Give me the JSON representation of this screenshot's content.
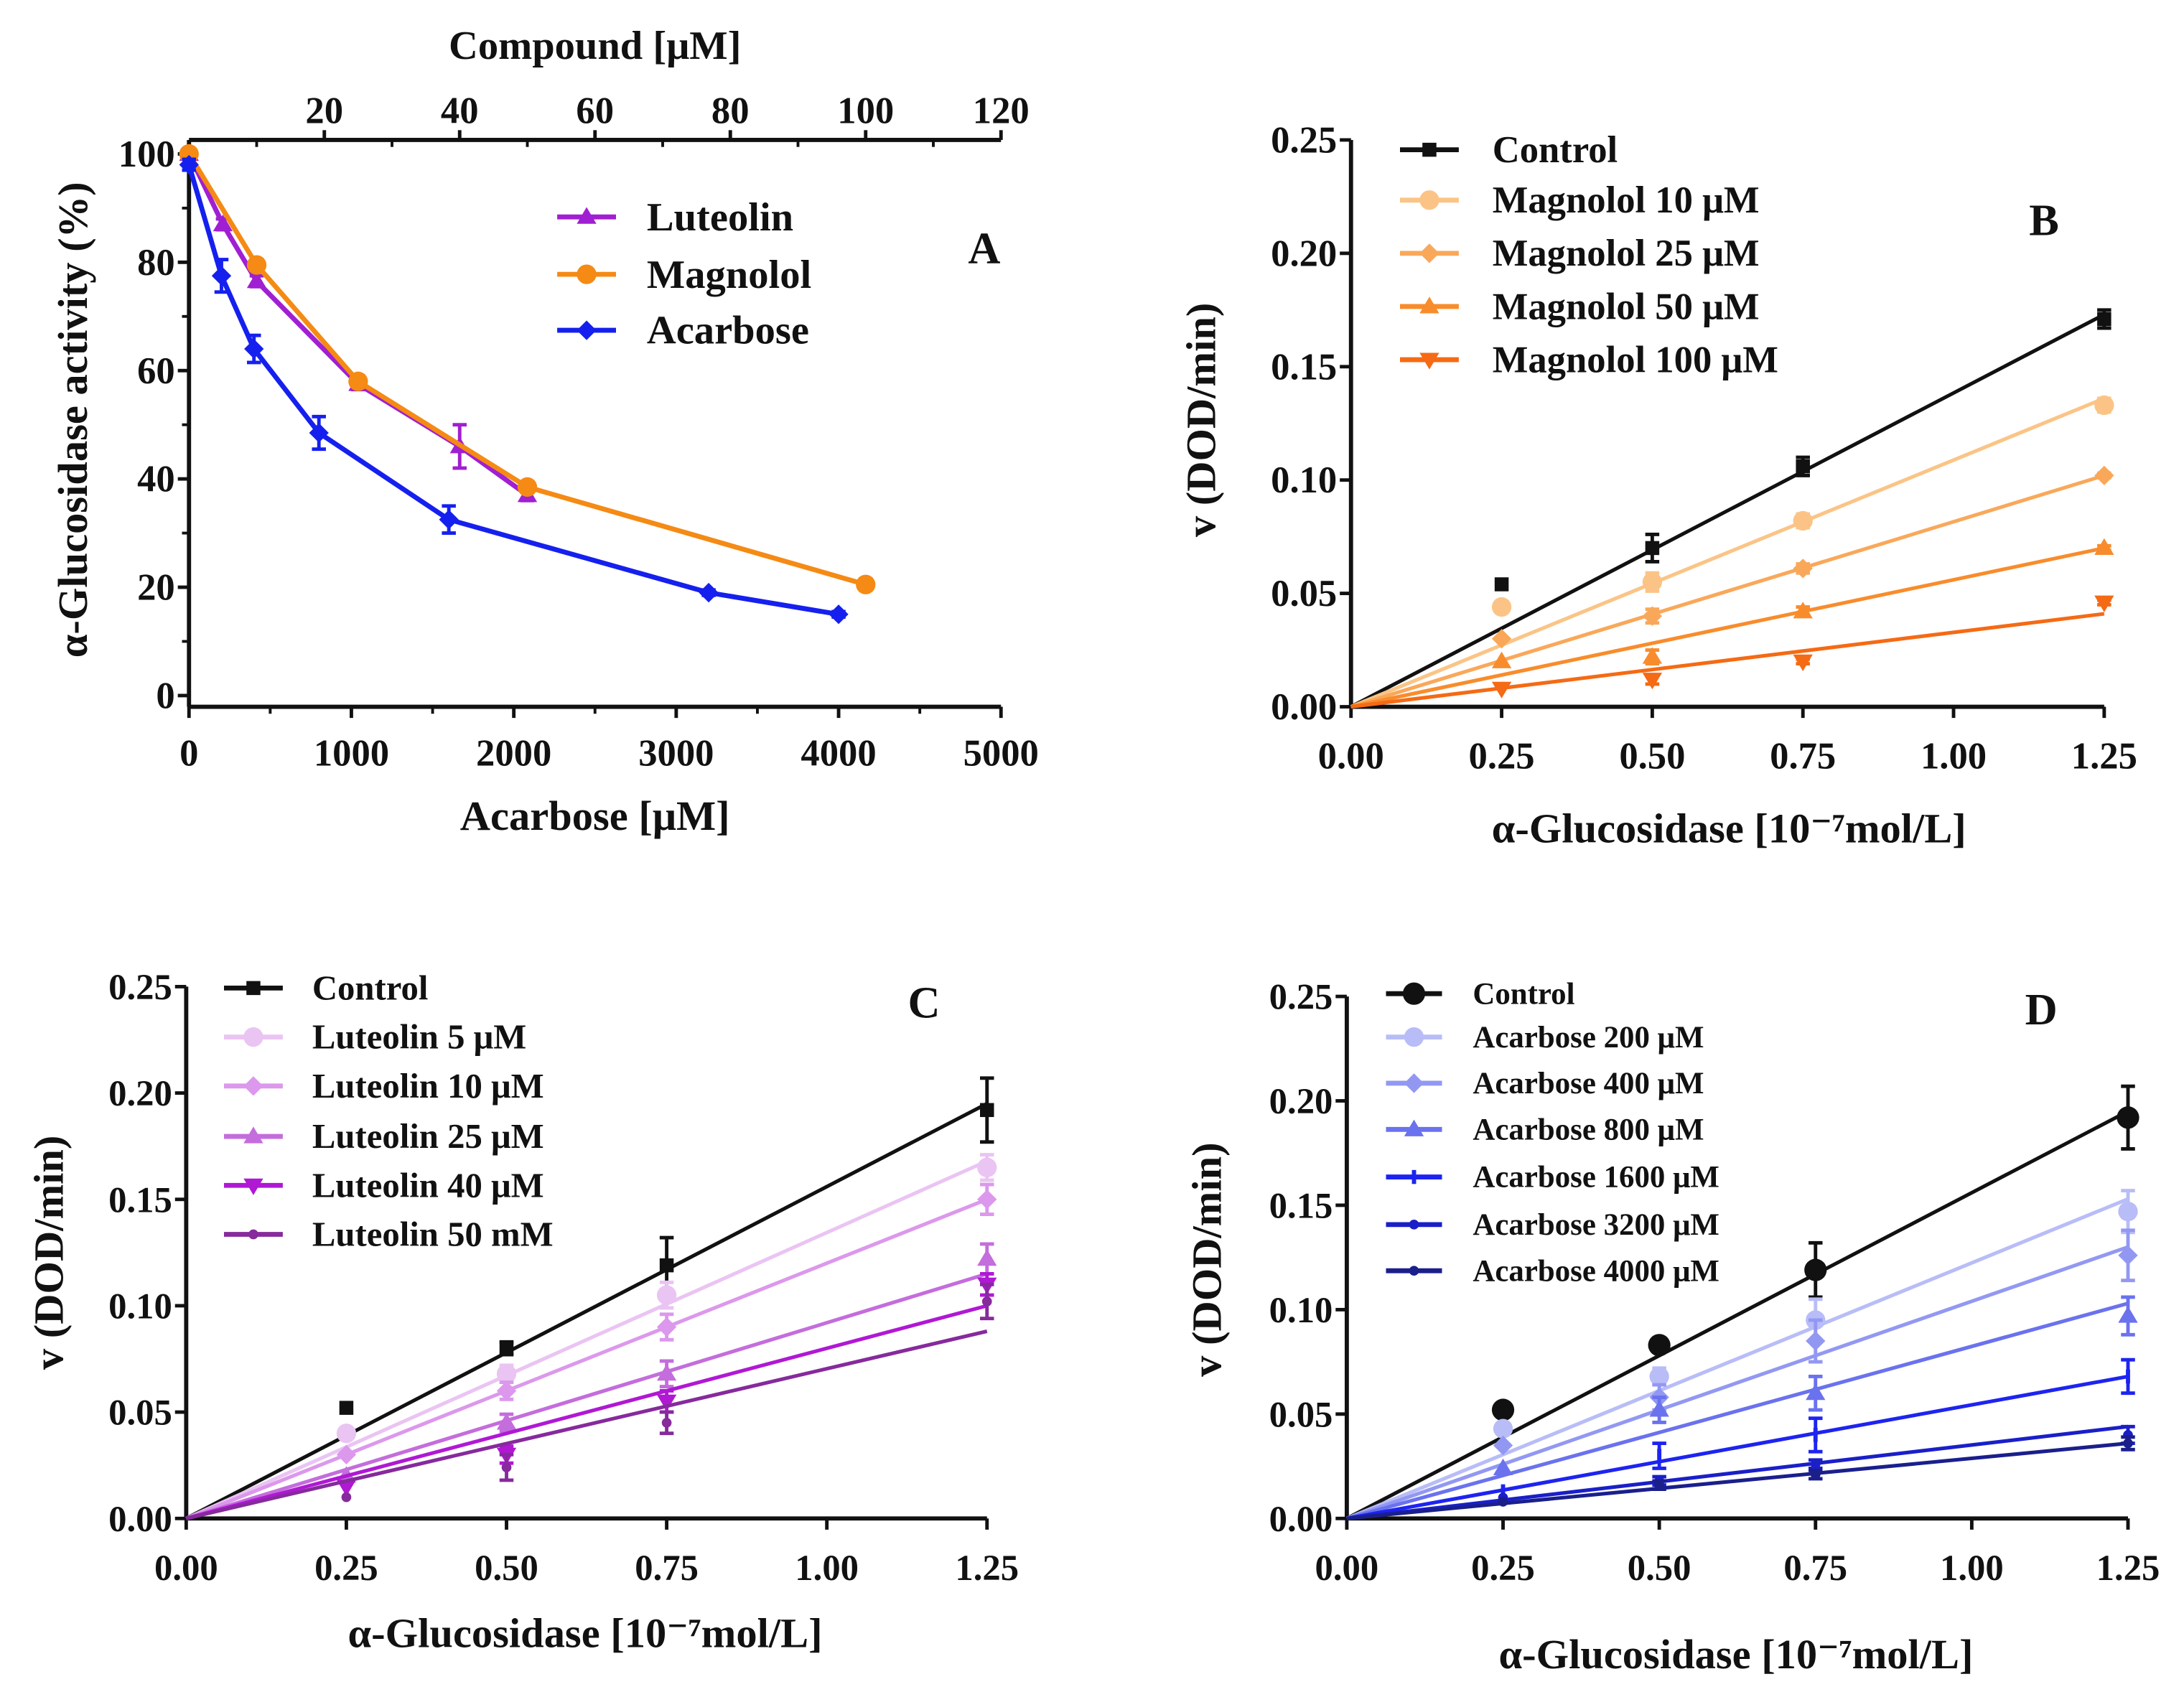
{
  "chart_data": [
    {
      "id": "A",
      "type": "line",
      "panel_letter": "A",
      "ylabel": "α-Glucosidase activity (%)",
      "xlabel": "Acarbose [μM]",
      "xlabel_top": "Compound [μM]",
      "ylim": [
        0,
        100
      ],
      "xlim": [
        0,
        5000
      ],
      "xlim_top": [
        0,
        120
      ],
      "yticks": [
        0,
        20,
        40,
        60,
        80,
        100
      ],
      "ytick_labels": [
        "0",
        "20",
        "40",
        "60",
        "80",
        "100"
      ],
      "xticks": [
        0,
        1000,
        2000,
        3000,
        4000,
        5000
      ],
      "xtick_labels": [
        "0",
        "1000",
        "2000",
        "3000",
        "4000",
        "5000"
      ],
      "xticks_top": [
        20,
        40,
        60,
        80,
        100,
        120
      ],
      "xtick_top_labels": [
        "20",
        "40",
        "60",
        "80",
        "100",
        "120"
      ],
      "legend_position": "top-right",
      "series": [
        {
          "name": "Luteolin",
          "axis": "top",
          "color": "#a01fd2",
          "marker": "triangle",
          "connect": true,
          "x": [
            0,
            5,
            10,
            25,
            40,
            50
          ],
          "y": [
            100,
            87,
            76.5,
            57.5,
            46,
            37
          ],
          "err": [
            0,
            1,
            1,
            1,
            4,
            1
          ]
        },
        {
          "name": "Magnolol",
          "axis": "top",
          "color": "#f58a14",
          "marker": "circle",
          "connect": true,
          "x": [
            0,
            10,
            25,
            50,
            100
          ],
          "y": [
            100,
            79.5,
            58,
            38.5,
            20.5
          ],
          "err": [
            0,
            1,
            1,
            1,
            1
          ]
        },
        {
          "name": "Acarbose",
          "axis": "bottom",
          "color": "#1520ee",
          "marker": "diamond",
          "connect": true,
          "x": [
            0,
            200,
            400,
            800,
            1600,
            3200,
            4000
          ],
          "y": [
            98,
            77.5,
            64,
            48.5,
            32.5,
            19,
            15
          ],
          "err": [
            1,
            3,
            2.5,
            3,
            2.5,
            0.5,
            0.5
          ]
        }
      ]
    },
    {
      "id": "B",
      "type": "scatter",
      "panel_letter": "B",
      "ylabel": "v (DOD/min)",
      "xlabel": "α-Glucosidase [10⁻⁷mol/L]",
      "ylim": [
        0,
        0.25
      ],
      "xlim": [
        0,
        1.25
      ],
      "yticks": [
        0,
        0.05,
        0.1,
        0.15,
        0.2,
        0.25
      ],
      "ytick_labels": [
        "0.00",
        "0.05",
        "0.10",
        "0.15",
        "0.20",
        "0.25"
      ],
      "xticks": [
        0,
        0.25,
        0.5,
        0.75,
        1,
        1.25
      ],
      "xtick_labels": [
        "0.00",
        "0.25",
        "0.50",
        "0.75",
        "1.00",
        "1.25"
      ],
      "legend_position": "top-left",
      "series": [
        {
          "name": "Control",
          "color": "#111111",
          "marker": "square",
          "fit_at_max": 0.173,
          "x": [
            0.25,
            0.5,
            0.75,
            1.25
          ],
          "y": [
            0.054,
            0.07,
            0.106,
            0.171
          ],
          "err": [
            0,
            0.006,
            0.004,
            0.004
          ]
        },
        {
          "name": "Magnolol 10 μM",
          "color": "#fbc486",
          "marker": "circle",
          "fit_at_max": 0.136,
          "x": [
            0.25,
            0.5,
            0.75,
            1.25
          ],
          "y": [
            0.044,
            0.055,
            0.082,
            0.133
          ],
          "err": [
            0,
            0.004,
            0.003,
            0.003
          ]
        },
        {
          "name": "Magnolol 25 μM",
          "color": "#f9a85a",
          "marker": "diamond",
          "fit_at_max": 0.102,
          "x": [
            0.25,
            0.5,
            0.75,
            1.25
          ],
          "y": [
            0.03,
            0.04,
            0.061,
            0.102
          ],
          "err": [
            0,
            0.003,
            0.002,
            0.001
          ]
        },
        {
          "name": "Magnolol 50 μM",
          "color": "#f88c2c",
          "marker": "triangle",
          "fit_at_max": 0.07,
          "x": [
            0.25,
            0.5,
            0.75,
            1.25
          ],
          "y": [
            0.02,
            0.022,
            0.042,
            0.07
          ],
          "err": [
            0,
            0.003,
            0.002,
            0.001
          ]
        },
        {
          "name": "Magnolol 100 μM",
          "color": "#f56a14",
          "marker": "triangle-down",
          "fit_at_max": 0.041,
          "x": [
            0.25,
            0.5,
            0.75,
            1.25
          ],
          "y": [
            0.008,
            0.012,
            0.02,
            0.046
          ],
          "err": [
            0,
            0.002,
            0.001,
            0.001
          ]
        }
      ]
    },
    {
      "id": "C",
      "type": "scatter",
      "panel_letter": "C",
      "ylabel": "v (DOD/min)",
      "xlabel": "α-Glucosidase [10⁻⁷mol/L]",
      "ylim": [
        0,
        0.25
      ],
      "xlim": [
        0,
        1.25
      ],
      "yticks": [
        0,
        0.05,
        0.1,
        0.15,
        0.2,
        0.25
      ],
      "ytick_labels": [
        "0.00",
        "0.05",
        "0.10",
        "0.15",
        "0.20",
        "0.25"
      ],
      "xticks": [
        0,
        0.25,
        0.5,
        0.75,
        1,
        1.25
      ],
      "xtick_labels": [
        "0.00",
        "0.25",
        "0.50",
        "0.75",
        "1.00",
        "1.25"
      ],
      "legend_position": "top-left",
      "series": [
        {
          "name": "Control",
          "color": "#111111",
          "marker": "square",
          "fit_at_max": 0.195,
          "x": [
            0.25,
            0.5,
            0.75,
            1.25
          ],
          "y": [
            0.052,
            0.08,
            0.119,
            0.192
          ],
          "err": [
            0,
            0.003,
            0.013,
            0.015
          ]
        },
        {
          "name": "Luteolin 5 μM",
          "color": "#eac4f3",
          "marker": "circle",
          "fit_at_max": 0.168,
          "x": [
            0.25,
            0.5,
            0.75,
            1.25
          ],
          "y": [
            0.04,
            0.068,
            0.105,
            0.165
          ],
          "err": [
            0,
            0.004,
            0.006,
            0.006
          ]
        },
        {
          "name": "Luteolin 10 μM",
          "color": "#dc98ec",
          "marker": "diamond",
          "fit_at_max": 0.15,
          "x": [
            0.25,
            0.5,
            0.75,
            1.25
          ],
          "y": [
            0.03,
            0.06,
            0.09,
            0.15
          ],
          "err": [
            0,
            0.004,
            0.006,
            0.007
          ]
        },
        {
          "name": "Luteolin 25 μM",
          "color": "#c46ddc",
          "marker": "triangle",
          "fit_at_max": 0.115,
          "x": [
            0.25,
            0.5,
            0.75,
            1.25
          ],
          "y": [
            0.02,
            0.045,
            0.068,
            0.122
          ],
          "err": [
            0,
            0.004,
            0.006,
            0.007
          ]
        },
        {
          "name": "Luteolin 40 μM",
          "color": "#b018d4",
          "marker": "triangle-down",
          "fit_at_max": 0.1,
          "x": [
            0.25,
            0.5,
            0.75,
            1.25
          ],
          "y": [
            0.015,
            0.03,
            0.055,
            0.11
          ],
          "err": [
            0,
            0.004,
            0.005,
            0.005
          ]
        },
        {
          "name": "Luteolin 50 mM",
          "color": "#862a9c",
          "marker": "dot",
          "fit_at_max": 0.088,
          "x": [
            0.25,
            0.5,
            0.75,
            1.25
          ],
          "y": [
            0.01,
            0.024,
            0.045,
            0.102
          ],
          "err": [
            0,
            0.006,
            0.005,
            0.008
          ]
        }
      ]
    },
    {
      "id": "D",
      "type": "scatter",
      "panel_letter": "D",
      "ylabel": "v (DOD/min)",
      "xlabel": "α-Glucosidase [10⁻⁷mol/L]",
      "ylim": [
        0,
        0.25
      ],
      "xlim": [
        0,
        1.25
      ],
      "yticks": [
        0,
        0.05,
        0.1,
        0.15,
        0.2,
        0.25
      ],
      "ytick_labels": [
        "0.00",
        "0.05",
        "0.10",
        "0.15",
        "0.20",
        "0.25"
      ],
      "xticks": [
        0,
        0.25,
        0.5,
        0.75,
        1,
        1.25
      ],
      "xtick_labels": [
        "0.00",
        "0.25",
        "0.50",
        "0.75",
        "1.00",
        "1.25"
      ],
      "legend_position": "top-left",
      "series": [
        {
          "name": "Control",
          "color": "#111111",
          "marker": "circle-big",
          "fit_at_max": 0.195,
          "x": [
            0.25,
            0.5,
            0.75,
            1.25
          ],
          "y": [
            0.052,
            0.083,
            0.119,
            0.192
          ],
          "err": [
            0,
            0.002,
            0.013,
            0.015
          ]
        },
        {
          "name": "Acarbose 200 μM",
          "color": "#b8bdf7",
          "marker": "circle",
          "fit_at_max": 0.153,
          "x": [
            0.25,
            0.5,
            0.75,
            1.25
          ],
          "y": [
            0.043,
            0.068,
            0.095,
            0.147
          ],
          "err": [
            0,
            0.004,
            0.01,
            0.01
          ]
        },
        {
          "name": "Acarbose 400 μM",
          "color": "#9298f2",
          "marker": "diamond",
          "fit_at_max": 0.13,
          "x": [
            0.25,
            0.5,
            0.75,
            1.25
          ],
          "y": [
            0.035,
            0.058,
            0.085,
            0.126
          ],
          "err": [
            0,
            0.006,
            0.01,
            0.012
          ]
        },
        {
          "name": "Acarbose 800 μM",
          "color": "#6a72ee",
          "marker": "triangle",
          "fit_at_max": 0.103,
          "x": [
            0.25,
            0.5,
            0.75,
            1.25
          ],
          "y": [
            0.024,
            0.052,
            0.06,
            0.097
          ],
          "err": [
            0,
            0.006,
            0.008,
            0.009
          ]
        },
        {
          "name": "Acarbose 1600 μM",
          "color": "#1d24f0",
          "marker": "dash",
          "fit_at_max": 0.068,
          "x": [
            0.25,
            0.5,
            0.75,
            1.25
          ],
          "y": [
            0.013,
            0.03,
            0.04,
            0.068
          ],
          "err": [
            0,
            0.006,
            0.008,
            0.008
          ]
        },
        {
          "name": "Acarbose 3200 μM",
          "color": "#1a1fc8",
          "marker": "dot",
          "fit_at_max": 0.044,
          "x": [
            0.25,
            0.5,
            0.75,
            1.25
          ],
          "y": [
            0.01,
            0.018,
            0.026,
            0.04
          ],
          "err": [
            0,
            0.002,
            0.002,
            0.004
          ]
        },
        {
          "name": "Acarbose 4000 μM",
          "color": "#1a1f8c",
          "marker": "dot",
          "fit_at_max": 0.036,
          "x": [
            0.25,
            0.5,
            0.75,
            1.25
          ],
          "y": [
            0.008,
            0.016,
            0.021,
            0.036
          ],
          "err": [
            0,
            0.002,
            0.002,
            0.003
          ]
        }
      ]
    }
  ]
}
